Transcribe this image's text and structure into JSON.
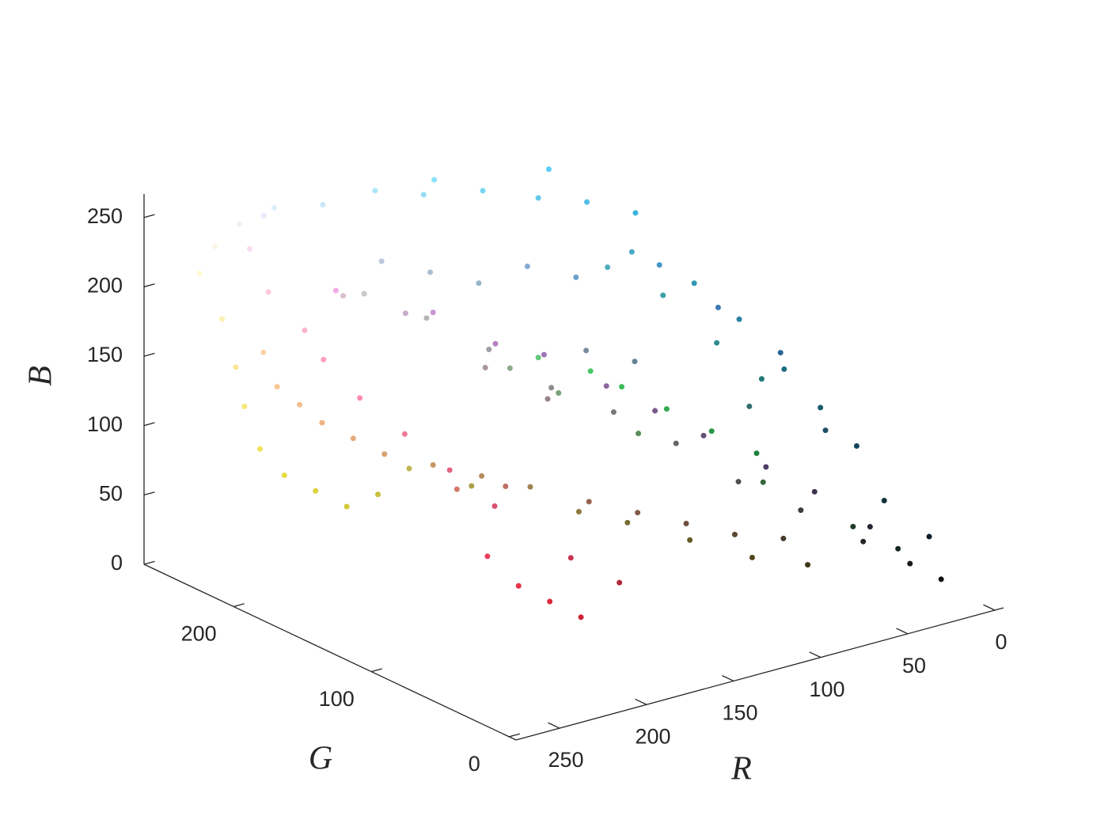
{
  "chart_data": {
    "type": "scatter3d",
    "xlabel": "R",
    "ylabel": "G",
    "zlabel": "B",
    "xlim": [
      -5,
      275
    ],
    "ylim": [
      -5,
      265
    ],
    "zlim": [
      0,
      267
    ],
    "xticks": [
      0,
      50,
      100,
      150,
      200,
      250
    ],
    "yticks": [
      0,
      100,
      200
    ],
    "zticks": [
      0,
      50,
      100,
      150,
      200,
      250
    ],
    "x": [
      240,
      230,
      200,
      150,
      120,
      100,
      80,
      60,
      90,
      140,
      70,
      50,
      40,
      30,
      25,
      20,
      45,
      35,
      60,
      80,
      60,
      70,
      50,
      40,
      30,
      100,
      250,
      255,
      250,
      240,
      230,
      220,
      255,
      250,
      240,
      200,
      180,
      160,
      140,
      120,
      100,
      80,
      60,
      40,
      200,
      180,
      160,
      140,
      120,
      100,
      80,
      60,
      40,
      25,
      15,
      250,
      250,
      245,
      240,
      230,
      220,
      210,
      200,
      250,
      250,
      245,
      240,
      230,
      220,
      200,
      180,
      160,
      140,
      120,
      100,
      80,
      60,
      150,
      130,
      110,
      90,
      70,
      170,
      190,
      210,
      190,
      220,
      230,
      210,
      200,
      240,
      180,
      130,
      110,
      150,
      170,
      190,
      120,
      100,
      200,
      220,
      170,
      150,
      140,
      120,
      90,
      50,
      30,
      20,
      20,
      10,
      255,
      250,
      220,
      170,
      60,
      40,
      70,
      30,
      50
    ],
    "y": [
      240,
      235,
      230,
      220,
      215,
      200,
      190,
      180,
      205,
      225,
      170,
      150,
      130,
      110,
      90,
      70,
      140,
      120,
      160,
      175,
      190,
      200,
      170,
      150,
      130,
      200,
      180,
      160,
      140,
      120,
      100,
      80,
      200,
      220,
      170,
      150,
      130,
      120,
      100,
      90,
      80,
      60,
      50,
      35,
      200,
      180,
      160,
      140,
      120,
      100,
      80,
      60,
      40,
      25,
      15,
      240,
      230,
      230,
      225,
      220,
      210,
      200,
      190,
      210,
      200,
      190,
      180,
      170,
      160,
      150,
      140,
      130,
      120,
      110,
      90,
      70,
      55,
      100,
      90,
      80,
      70,
      60,
      160,
      180,
      120,
      110,
      40,
      50,
      30,
      50,
      60,
      40,
      170,
      160,
      180,
      190,
      200,
      140,
      130,
      170,
      190,
      150,
      130,
      170,
      160,
      140,
      100,
      60,
      40,
      50,
      30,
      250,
      245,
      240,
      230,
      120,
      100,
      150,
      80,
      110
    ],
    "z": [
      245,
      250,
      250,
      245,
      240,
      235,
      230,
      220,
      250,
      250,
      200,
      180,
      160,
      130,
      110,
      90,
      140,
      120,
      170,
      190,
      90,
      100,
      80,
      70,
      60,
      120,
      200,
      190,
      170,
      150,
      130,
      110,
      220,
      240,
      230,
      210,
      190,
      180,
      160,
      140,
      120,
      100,
      80,
      55,
      200,
      185,
      165,
      140,
      125,
      105,
      80,
      62,
      42,
      28,
      18,
      180,
      150,
      120,
      90,
      70,
      60,
      50,
      60,
      170,
      150,
      140,
      130,
      120,
      110,
      100,
      90,
      80,
      60,
      50,
      40,
      30,
      25,
      80,
      70,
      60,
      50,
      45,
      70,
      80,
      100,
      100,
      60,
      70,
      50,
      80,
      90,
      60,
      210,
      200,
      200,
      210,
      220,
      160,
      150,
      200,
      210,
      160,
      140,
      140,
      120,
      90,
      60,
      40,
      30,
      60,
      40,
      210,
      230,
      250,
      250,
      180,
      150,
      200,
      100,
      110
    ]
  }
}
